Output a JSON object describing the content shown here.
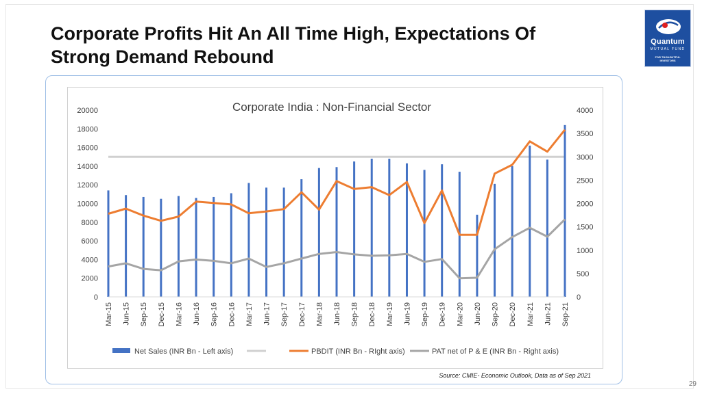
{
  "slide": {
    "title_line1": "Corporate Profits Hit An All Time High, Expectations Of",
    "title_line2": "Strong Demand Rebound",
    "source": "Source: CMIE- Economic Outlook, Data as of Sep 2021",
    "page_number": "29"
  },
  "logo": {
    "brand": "Quantum",
    "tagline": "MUTUAL FUND",
    "motto_line1": "FOR THOUGHTFUL",
    "motto_line2": "INVESTORS"
  },
  "colors": {
    "net_sales": "#4472c4",
    "pbdit": "#ed7d31",
    "pat": "#a5a5a5",
    "reference_line": "#d0d0d0",
    "logo_bg": "#1e4fa0"
  },
  "chart_data": {
    "type": "bar",
    "title": "Corporate India : Non-Financial Sector",
    "categories": [
      "Mar-15",
      "Jun-15",
      "Sep-15",
      "Dec-15",
      "Mar-16",
      "Jun-16",
      "Sep-16",
      "Dec-16",
      "Mar-17",
      "Jun-17",
      "Sep-17",
      "Dec-17",
      "Mar-18",
      "Jun-18",
      "Sep-18",
      "Dec-18",
      "Mar-19",
      "Jun-19",
      "Sep-19",
      "Dec-19",
      "Mar-20",
      "Jun-20",
      "Sep-20",
      "Dec-20",
      "Mar-21",
      "Jun-21",
      "Sep-21"
    ],
    "ylim_left": [
      0,
      20000
    ],
    "yticks_left": [
      0,
      2000,
      4000,
      6000,
      8000,
      10000,
      12000,
      14000,
      16000,
      18000,
      20000
    ],
    "ylim_right": [
      0,
      4000
    ],
    "yticks_right": [
      0,
      500,
      1000,
      1500,
      2000,
      2500,
      3000,
      3500,
      4000
    ],
    "grid": false,
    "legend_position": "bottom",
    "series": [
      {
        "name": "Net Sales (INR Bn - Left axis)",
        "kind": "bar",
        "axis": "left",
        "values": [
          11400,
          10900,
          10700,
          10500,
          10800,
          10600,
          10700,
          11100,
          12200,
          11700,
          11700,
          12600,
          13800,
          13900,
          14500,
          14800,
          14800,
          14300,
          13600,
          14200,
          13400,
          8800,
          12100,
          14000,
          16200,
          14700,
          18400
        ]
      },
      {
        "name": "PBDIT (INR Bn - RIght axis)",
        "kind": "line",
        "axis": "right",
        "values": [
          1780,
          1890,
          1740,
          1630,
          1720,
          2040,
          2010,
          1980,
          1790,
          1830,
          1880,
          2240,
          1870,
          2480,
          2310,
          2350,
          2180,
          2460,
          1580,
          2280,
          1330,
          1330,
          2640,
          2830,
          3330,
          3110,
          3580
        ]
      },
      {
        "name": "",
        "kind": "reference-line",
        "axis": "right",
        "value": 3000
      },
      {
        "name": "PAT net of P & E (INR Bn - Right axis)",
        "kind": "line",
        "axis": "right",
        "values": [
          650,
          720,
          600,
          570,
          760,
          800,
          770,
          720,
          820,
          640,
          720,
          820,
          920,
          960,
          910,
          880,
          890,
          920,
          750,
          810,
          400,
          410,
          1020,
          1280,
          1480,
          1290,
          1660
        ]
      }
    ]
  }
}
